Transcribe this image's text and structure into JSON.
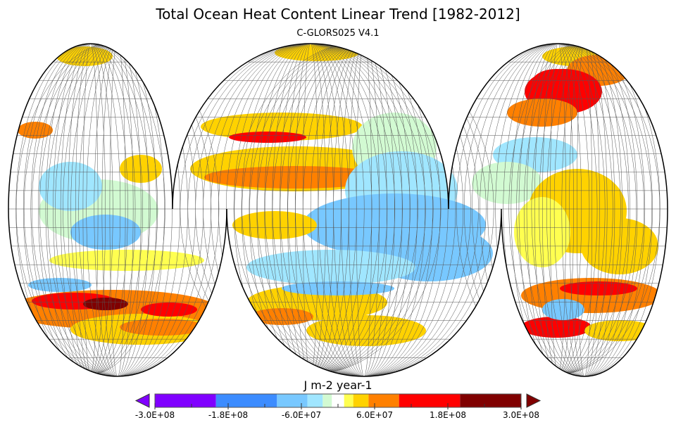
{
  "title": "Total Ocean Heat Content Linear Trend [1982-2012]",
  "subtitle": "C-GLORS025 V4.1",
  "chart_data": {
    "type": "heatmap",
    "projection": "interrupted homolosine (global ocean map)",
    "variable": "Total Ocean Heat Content Linear Trend",
    "period": "1982-2012",
    "colorbar": {
      "label": "J m-2 year-1",
      "levels": [
        -300000000.0,
        -200000000.0,
        -100000000.0,
        -50000000.0,
        -25000000.0,
        -10000000.0,
        10000000.0,
        25000000.0,
        50000000.0,
        100000000.0,
        200000000.0,
        300000000.0
      ],
      "colors": [
        "#8000ff",
        "#3c8cff",
        "#78c8ff",
        "#a0e6ff",
        "#d2fad2",
        "#ffffff",
        "#ffff50",
        "#ffd200",
        "#ff8000",
        "#ff0000",
        "#800000"
      ],
      "under_color": "#8000ff",
      "over_color": "#800000",
      "range": [
        -300000000.0,
        300000000.0
      ],
      "tick_values": [
        -300000000.0,
        -180000000.0,
        -60000000.0,
        60000000.0,
        180000000.0,
        300000000.0
      ],
      "tick_labels": [
        "-3.0E+08",
        "-1.8E+08",
        "-6.0E+07",
        "6.0E+07",
        "1.8E+08",
        "3.0E+08"
      ]
    }
  }
}
